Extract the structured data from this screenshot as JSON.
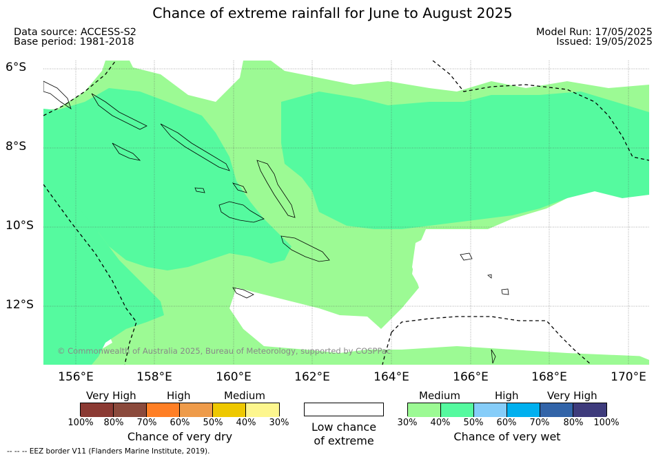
{
  "title": "Chance of extreme rainfall for June to August 2025",
  "meta": {
    "data_source": "Data source: ACCESS-S2",
    "base_period": "Base period: 1981-2018",
    "model_run": "Model Run: 17/05/2025",
    "issued": "Issued: 19/05/2025"
  },
  "map": {
    "lat_labels": [
      "6°S",
      "8°S",
      "10°S",
      "12°S"
    ],
    "lon_labels": [
      "156°E",
      "158°E",
      "160°E",
      "162°E",
      "164°E",
      "166°E",
      "168°E",
      "170°E"
    ],
    "copyright": "© Commonwealth of Australia 2025, Bureau of Meteorology, supported by COSPPac",
    "colors": {
      "medium_wet": "#9cfa94",
      "high_wet": "#55fa9f",
      "ocean_low": "#ffffff"
    }
  },
  "legend": {
    "dry": {
      "headers": [
        "Very High",
        "High",
        "Medium"
      ],
      "ticks": [
        "100%",
        "80%",
        "70%",
        "60%",
        "50%",
        "40%",
        "30%"
      ],
      "colors": [
        "#8b3a33",
        "#8b4a3c",
        "#ff7f25",
        "#ee9b4a",
        "#eec800",
        "#fdf68e"
      ],
      "label": "Chance of very dry"
    },
    "low": {
      "line1": "Low chance",
      "line2": "of extreme"
    },
    "wet": {
      "headers": [
        "Medium",
        "High",
        "Very High"
      ],
      "ticks": [
        "30%",
        "40%",
        "50%",
        "60%",
        "70%",
        "80%",
        "100%"
      ],
      "colors": [
        "#9cfa94",
        "#55fa9f",
        "#86cdf9",
        "#00b0ef",
        "#3264a8",
        "#3e3b7c"
      ],
      "label": "Chance of very wet"
    }
  },
  "footer": "--  --  -- EEZ border V11 (Flanders Marine Institute, 2019)."
}
